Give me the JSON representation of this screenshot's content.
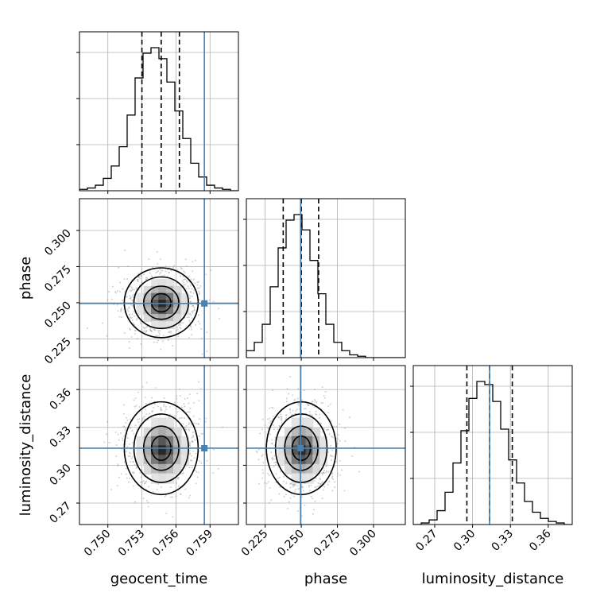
{
  "chart_data": {
    "type": "corner",
    "parameters": [
      "geocent_time",
      "phase",
      "luminosity_distance"
    ],
    "truth_color": "#4682b4",
    "grid": true,
    "ranges": {
      "geocent_time": [
        0.7475,
        0.7615
      ],
      "phase": [
        0.212,
        0.322
      ],
      "luminosity_distance": [
        0.253,
        0.379
      ]
    },
    "ticks": {
      "geocent_time": [
        "0.750",
        "0.753",
        "0.756",
        "0.759"
      ],
      "phase": [
        "0.225",
        "0.250",
        "0.275",
        "0.300"
      ],
      "luminosity_distance": [
        "0.27",
        "0.30",
        "0.33",
        "0.36"
      ]
    },
    "truths": {
      "geocent_time": 0.7585,
      "phase": 0.2495,
      "luminosity_distance": 0.3135
    },
    "quantiles": {
      "geocent_time": [
        0.753,
        0.7547,
        0.7563
      ],
      "phase": [
        0.2375,
        0.25,
        0.262
      ],
      "luminosity_distance": [
        0.2955,
        0.3135,
        0.3315
      ]
    },
    "posterior_means": {
      "geocent_time": 0.7547,
      "phase": 0.25,
      "luminosity_distance": 0.3135
    },
    "posterior_sd": {
      "geocent_time": 0.00155,
      "phase": 0.0115,
      "luminosity_distance": 0.0175
    },
    "histograms": {
      "geocent_time": {
        "edges_range": [
          0.7475,
          0.7615
        ],
        "counts": [
          1,
          2,
          4,
          9,
          18,
          32,
          55,
          82,
          100,
          104,
          96,
          79,
          58,
          38,
          20,
          10,
          4,
          2,
          1,
          0
        ]
      },
      "phase": {
        "edges_range": [
          0.212,
          0.322
        ],
        "counts": [
          5,
          11,
          24,
          51,
          79,
          99,
          103,
          92,
          70,
          46,
          24,
          11,
          5,
          2,
          1,
          0,
          0,
          0,
          0,
          0
        ]
      },
      "luminosity_distance": {
        "edges_range": [
          0.253,
          0.379
        ],
        "counts": [
          0,
          1,
          3,
          9,
          21,
          40,
          61,
          82,
          93,
          91,
          80,
          62,
          42,
          27,
          15,
          8,
          4,
          2,
          1,
          0
        ]
      }
    }
  }
}
